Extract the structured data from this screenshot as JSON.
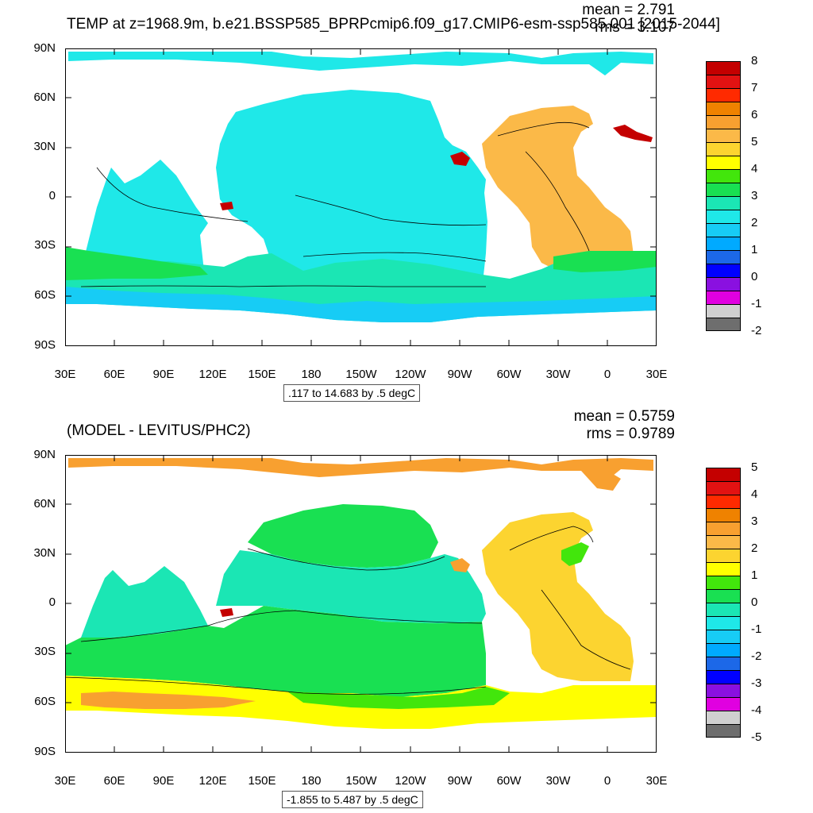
{
  "top": {
    "title": "TEMP at z=1968.9m, b.e21.BSSP585_BPRPcmip6.f09_g17.CMIP6-esm-ssp585.001 [2015-2044]",
    "mean": "mean = 2.791",
    "rms": "rms = 3.107",
    "contour_info": ".117 to 14.683 by .5 degC",
    "colorbar": {
      "labels": [
        "8",
        "7",
        "6",
        "5",
        "4",
        "3",
        "2",
        "1",
        "0",
        "-1",
        "-2"
      ],
      "colors": [
        "#c40000",
        "#e21212",
        "#ff2a00",
        "#ef8200",
        "#f8a030",
        "#fbb948",
        "#fcd430",
        "#ffff00",
        "#42e60c",
        "#19e052",
        "#1be6b4",
        "#1fe8e8",
        "#17ccf5",
        "#00aaff",
        "#1c68e8",
        "#0000ff",
        "#8a10e0",
        "#e000e0",
        "#d0d0d0",
        "#6e6e6e"
      ]
    }
  },
  "bottom": {
    "title": "(MODEL - LEVITUS/PHC2)",
    "mean": "mean = 0.5759",
    "rms": "rms = 0.9789",
    "contour_info": "-1.855 to 5.487 by .5 degC",
    "colorbar": {
      "labels": [
        "5",
        "4",
        "3",
        "2",
        "1",
        "0",
        "-1",
        "-2",
        "-3",
        "-4",
        "-5"
      ],
      "colors": [
        "#c40000",
        "#e21212",
        "#ff2a00",
        "#ef8200",
        "#f8a030",
        "#fbb948",
        "#fcd430",
        "#ffff00",
        "#42e60c",
        "#19e052",
        "#1be6b4",
        "#1fe8e8",
        "#17ccf5",
        "#00aaff",
        "#1c68e8",
        "#0000ff",
        "#8a10e0",
        "#e000e0",
        "#d0d0d0",
        "#6e6e6e"
      ]
    }
  },
  "axes": {
    "lat_labels": [
      "90N",
      "60N",
      "30N",
      "0",
      "30S",
      "60S",
      "90S"
    ],
    "lon_labels": [
      "30E",
      "60E",
      "90E",
      "120E",
      "150E",
      "180",
      "150W",
      "120W",
      "90W",
      "60W",
      "30W",
      "0",
      "30E"
    ]
  },
  "fill_colors": {
    "arctic_top": "#1fe8e8",
    "pacific_top": "#1fe8e8",
    "atlantic_top": "#fbb948",
    "south_top": "#1be6b4",
    "ring_top": "#19e052",
    "ice_top": "#17ccf5",
    "arctic_bottom": "#f8a030",
    "pacific_bottom": "#1be6b4",
    "band_bottom": "#19e052",
    "atlantic_bottom": "#fcd430",
    "south_bottom": "#ffff00",
    "ring_bottom": "#42e60c",
    "med": "#c40000"
  }
}
